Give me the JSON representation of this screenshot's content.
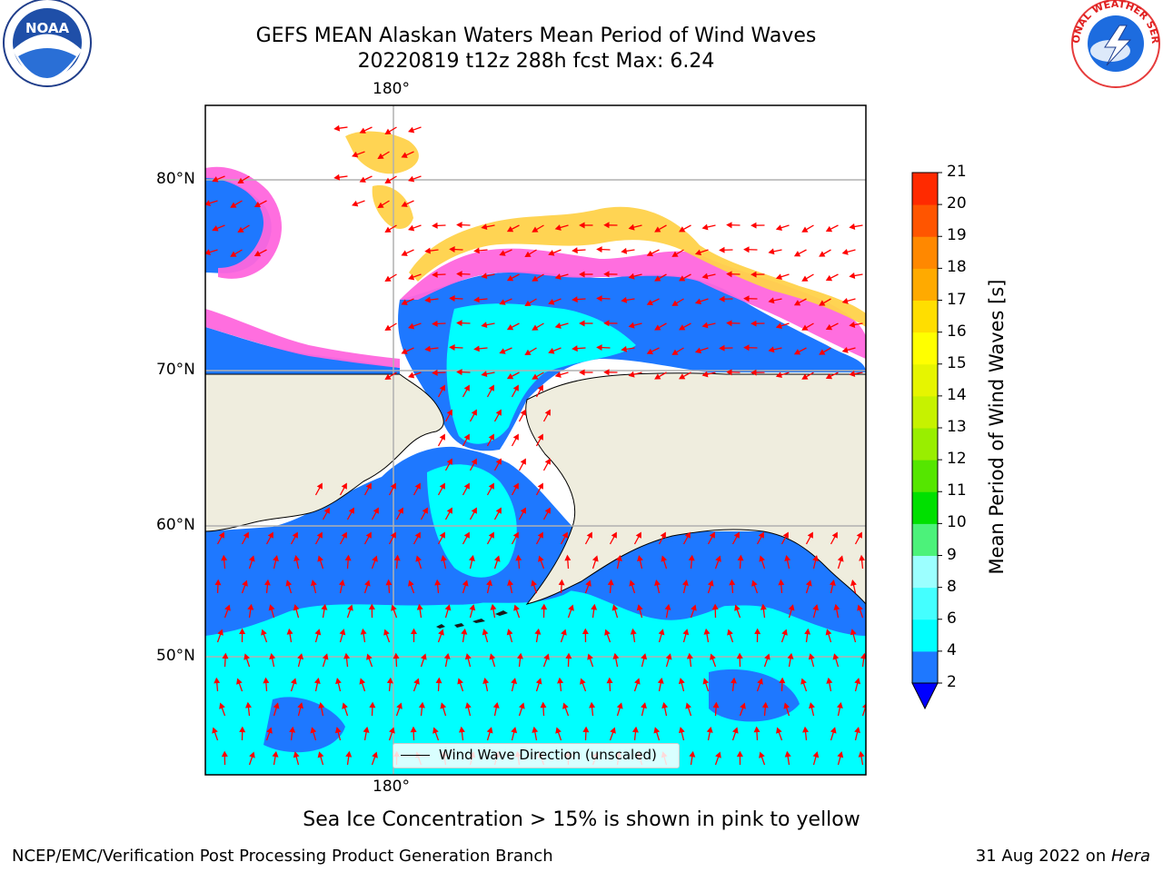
{
  "header": {
    "title_line1": "GEFS MEAN Alaskan Waters Mean Period of Wind Waves",
    "title_line2": "20220819 t12z 288h fcst   Max: 6.24"
  },
  "logos": {
    "noaa": {
      "text": "NOAA",
      "icon": "noaa-logo-icon"
    },
    "nws": {
      "text": "NATIONAL WEATHER SERVICE",
      "icon": "nws-logo-icon"
    }
  },
  "map": {
    "lon_label_top": "180°",
    "lon_label_bottom": "180°",
    "lat_labels": [
      "80°N",
      "70°N",
      "60°N",
      "50°N"
    ],
    "colors": {
      "land": "#efedde",
      "ice": "#ffffff",
      "wave_low": "#1e78ff",
      "wave_mid": "#00ffff",
      "ice_pink": "#ff66dd",
      "ice_yellow": "#ffd24a",
      "arrows": "#ff0000",
      "grid": "#b0b0b0"
    }
  },
  "legend": {
    "label": "Wind Wave Direction (unscaled)"
  },
  "colorbar": {
    "label": "Mean Period of Wind Waves [s]",
    "ticks": [
      "2",
      "4",
      "6",
      "8",
      "9",
      "10",
      "11",
      "12",
      "13",
      "14",
      "15",
      "16",
      "17",
      "18",
      "19",
      "20",
      "21"
    ],
    "colors": [
      "#1e78ff",
      "#00ffff",
      "#44ffff",
      "#9cffff",
      "#4cf27a",
      "#00e000",
      "#55e600",
      "#99ee00",
      "#c6f200",
      "#e6f500",
      "#ffff00",
      "#ffde00",
      "#ffaa00",
      "#ff8800",
      "#ff5500",
      "#ff2a00"
    ],
    "extend_color": "#0000ff"
  },
  "caption": "Sea Ice Concentration > 15% is shown in pink to yellow",
  "footer": {
    "left": "NCEP/EMC/Verification Post Processing Product Generation Branch",
    "right_date": "31 Aug 2022 on ",
    "right_machine": "Hera"
  }
}
